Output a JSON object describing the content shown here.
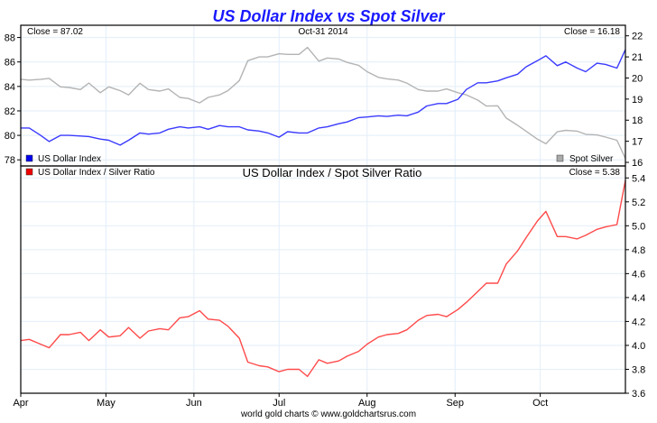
{
  "chart_data": [
    {
      "type": "line",
      "title": "US Dollar Index vs Spot Silver",
      "date_label": "Oct-31  2014",
      "close_left": "Close = 87.02",
      "close_right": "Close = 16.18",
      "x": [
        "2014-04-01",
        "2014-04-04",
        "2014-04-08",
        "2014-04-11",
        "2014-04-15",
        "2014-04-18",
        "2014-04-22",
        "2014-04-25",
        "2014-04-29",
        "2014-05-02",
        "2014-05-06",
        "2014-05-09",
        "2014-05-13",
        "2014-05-16",
        "2014-05-20",
        "2014-05-23",
        "2014-05-27",
        "2014-05-30",
        "2014-06-03",
        "2014-06-06",
        "2014-06-10",
        "2014-06-13",
        "2014-06-17",
        "2014-06-20",
        "2014-06-24",
        "2014-06-27",
        "2014-07-01",
        "2014-07-04",
        "2014-07-08",
        "2014-07-11",
        "2014-07-15",
        "2014-07-18",
        "2014-07-22",
        "2014-07-25",
        "2014-07-29",
        "2014-08-01",
        "2014-08-05",
        "2014-08-08",
        "2014-08-12",
        "2014-08-15",
        "2014-08-19",
        "2014-08-22",
        "2014-08-26",
        "2014-08-29",
        "2014-09-02",
        "2014-09-05",
        "2014-09-09",
        "2014-09-12",
        "2014-09-16",
        "2014-09-19",
        "2014-09-23",
        "2014-09-26",
        "2014-09-30",
        "2014-10-03",
        "2014-10-07",
        "2014-10-10",
        "2014-10-14",
        "2014-10-17",
        "2014-10-21",
        "2014-10-24",
        "2014-10-28",
        "2014-10-31"
      ],
      "series": [
        {
          "name": "US Dollar Index",
          "axis": "left",
          "color": "#3a3aff",
          "values": [
            80.6,
            80.6,
            80.0,
            79.5,
            80.0,
            80.0,
            79.95,
            79.9,
            79.7,
            79.6,
            79.2,
            79.6,
            80.2,
            80.1,
            80.2,
            80.5,
            80.7,
            80.6,
            80.7,
            80.5,
            80.8,
            80.7,
            80.7,
            80.45,
            80.35,
            80.2,
            79.85,
            80.3,
            80.2,
            80.2,
            80.6,
            80.7,
            80.95,
            81.1,
            81.45,
            81.5,
            81.6,
            81.55,
            81.65,
            81.6,
            81.9,
            82.4,
            82.6,
            82.6,
            82.95,
            83.75,
            84.3,
            84.3,
            84.45,
            84.7,
            85.0,
            85.6,
            86.1,
            86.5,
            85.7,
            86.0,
            85.5,
            85.2,
            85.9,
            85.8,
            85.5,
            87.02
          ]
        },
        {
          "name": "Spot Silver",
          "axis": "right",
          "color": "#b4b4b4",
          "values": [
            19.94,
            19.9,
            19.94,
            19.98,
            19.58,
            19.55,
            19.45,
            19.76,
            19.3,
            19.58,
            19.4,
            19.2,
            19.75,
            19.45,
            19.38,
            19.48,
            19.08,
            19.03,
            18.82,
            19.08,
            19.2,
            19.4,
            19.88,
            20.82,
            21.0,
            21.0,
            21.15,
            21.12,
            21.12,
            21.45,
            20.8,
            20.95,
            20.9,
            20.74,
            20.6,
            20.3,
            20.03,
            19.96,
            19.9,
            19.76,
            19.45,
            19.38,
            19.38,
            19.48,
            19.3,
            19.2,
            18.95,
            18.67,
            18.68,
            18.1,
            17.76,
            17.48,
            17.1,
            16.88,
            17.45,
            17.52,
            17.48,
            17.33,
            17.3,
            17.2,
            17.05,
            16.18
          ]
        }
      ],
      "left_axis": {
        "ylim": [
          77.5,
          89
        ],
        "ticks": [
          "78",
          "80",
          "82",
          "84",
          "86",
          "88"
        ]
      },
      "right_axis": {
        "ylim": [
          15.83,
          22.5
        ],
        "ticks": [
          "16",
          "17",
          "18",
          "19",
          "20",
          "21",
          "22"
        ]
      },
      "grid": true,
      "legend": "bottom"
    },
    {
      "type": "line",
      "title": "US Dollar Index / Spot Silver Ratio",
      "close_right": "Close = 5.38",
      "series": [
        {
          "name": "US Dollar Index / Silver Ratio",
          "axis": "right",
          "color": "#ff4a4a",
          "values": [
            4.04,
            4.05,
            4.01,
            3.98,
            4.09,
            4.09,
            4.11,
            4.04,
            4.13,
            4.07,
            4.08,
            4.15,
            4.06,
            4.12,
            4.14,
            4.13,
            4.23,
            4.24,
            4.29,
            4.22,
            4.21,
            4.16,
            4.06,
            3.86,
            3.83,
            3.82,
            3.78,
            3.8,
            3.8,
            3.74,
            3.88,
            3.85,
            3.87,
            3.91,
            3.95,
            4.01,
            4.07,
            4.09,
            4.1,
            4.13,
            4.21,
            4.25,
            4.26,
            4.24,
            4.3,
            4.36,
            4.45,
            4.52,
            4.52,
            4.68,
            4.79,
            4.9,
            5.04,
            5.12,
            4.91,
            4.91,
            4.89,
            4.92,
            4.97,
            4.99,
            5.01,
            5.38
          ]
        }
      ],
      "right_axis": {
        "ylim": [
          3.6,
          5.5
        ],
        "ticks": [
          "3.6",
          "3.8",
          "4.0",
          "4.2",
          "4.4",
          "4.6",
          "4.8",
          "5.0",
          "5.2",
          "5.4"
        ]
      },
      "x_ticks": [
        "Apr",
        "May",
        "Jun",
        "Jul",
        "Aug",
        "Sep",
        "Oct"
      ],
      "grid": true,
      "legend": "top-left"
    }
  ],
  "footer": "world gold charts © www.goldchartsrus.com"
}
